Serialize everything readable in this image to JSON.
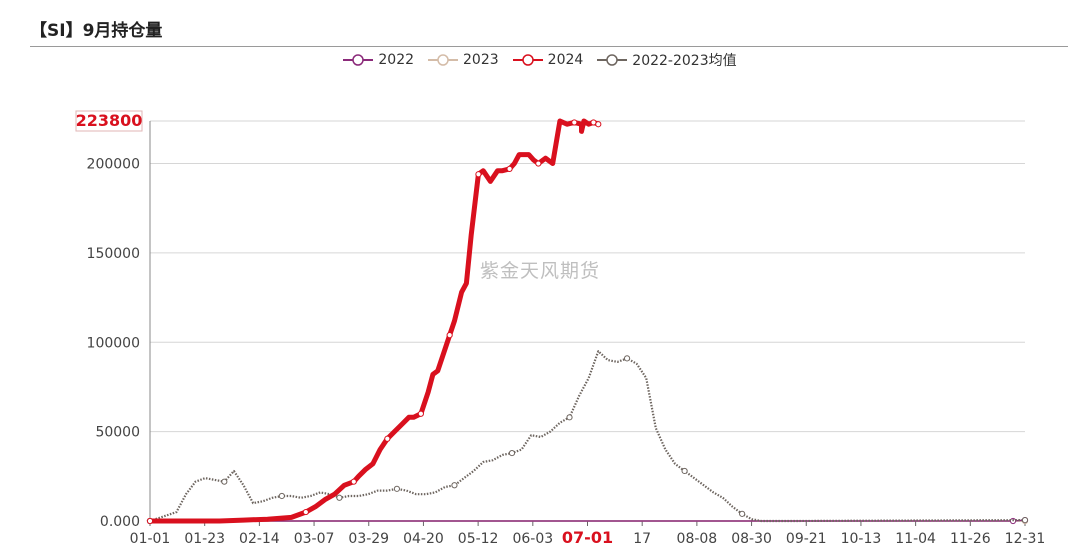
{
  "title": "【SI】9月持仓量",
  "watermark": "紫金天风期货",
  "colors": {
    "2022": "#8b2a7a",
    "2023": "#d4bca8",
    "2024": "#d9101e",
    "avg": "#6e6660"
  },
  "chart_data": {
    "type": "line",
    "title": "【SI】9月持仓量",
    "xlabel": "",
    "ylabel": "",
    "ylim": [
      0,
      223800
    ],
    "y_ticks": [
      "0.000",
      "50000",
      "100000",
      "150000",
      "200000"
    ],
    "x_ticks": [
      "01-01",
      "01-23",
      "02-14",
      "03-07",
      "03-29",
      "04-20",
      "05-12",
      "06-03",
      "07-01",
      "17",
      "08-08",
      "08-30",
      "09-21",
      "10-13",
      "11-04",
      "11-26",
      "12-31"
    ],
    "highlight_x_tick": "07-01",
    "y_max_label": "223800",
    "legend": [
      "2022",
      "2023",
      "2024",
      "2022-2023均值"
    ],
    "grid": true,
    "series": [
      {
        "name": "2024",
        "key": "2024",
        "x": [
          1,
          30,
          40,
          50,
          60,
          66,
          70,
          74,
          78,
          82,
          86,
          88,
          91,
          94,
          97,
          100,
          103,
          106,
          109,
          111,
          114,
          117,
          119,
          121,
          124,
          126,
          128,
          131,
          133,
          135,
          138,
          140,
          143,
          146,
          148,
          151,
          153,
          155,
          159,
          161,
          163,
          166,
          169,
          172,
          175,
          178,
          181,
          181,
          182,
          184,
          186,
          188
        ],
        "y": [
          0,
          0,
          500,
          1000,
          2000,
          5000,
          8000,
          12000,
          15000,
          20000,
          22000,
          25000,
          29000,
          32000,
          40000,
          46000,
          50000,
          54000,
          58000,
          58000,
          60000,
          72000,
          82000,
          84000,
          96000,
          104000,
          112000,
          128000,
          133000,
          160000,
          194000,
          196000,
          190000,
          196000,
          196000,
          197000,
          200000,
          205000,
          205000,
          202000,
          200000,
          203000,
          200000,
          223800,
          222000,
          223000,
          222000,
          218000,
          223800,
          222000,
          223000,
          222000
        ]
      },
      {
        "name": "2022-2023均值",
        "key": "avg",
        "x": [
          1,
          12,
          16,
          20,
          24,
          28,
          32,
          36,
          40,
          44,
          48,
          52,
          56,
          60,
          64,
          68,
          72,
          76,
          80,
          84,
          88,
          92,
          96,
          100,
          104,
          108,
          112,
          116,
          120,
          124,
          128,
          132,
          136,
          140,
          144,
          148,
          152,
          156,
          160,
          164,
          168,
          172,
          176,
          180,
          184,
          188,
          192,
          196,
          200,
          204,
          208,
          212,
          216,
          220,
          224,
          228,
          232,
          236,
          240,
          244,
          248,
          252,
          256,
          260,
          264,
          268,
          366
        ],
        "y": [
          0,
          5000,
          15000,
          22000,
          24000,
          23000,
          22000,
          28000,
          20000,
          10000,
          11000,
          13000,
          14000,
          14000,
          13000,
          14000,
          16000,
          15000,
          13000,
          14000,
          14000,
          15000,
          17000,
          17000,
          18000,
          17000,
          15000,
          15000,
          16000,
          19000,
          20000,
          24000,
          28000,
          33000,
          34000,
          37000,
          38000,
          40000,
          48000,
          47000,
          50000,
          55000,
          58000,
          70000,
          80000,
          95000,
          90000,
          89000,
          91000,
          88000,
          80000,
          52000,
          40000,
          32000,
          28000,
          24000,
          20000,
          16000,
          13000,
          8000,
          4000,
          1000,
          0,
          0,
          0,
          0,
          500
        ]
      },
      {
        "name": "2022",
        "key": "2022",
        "x": [
          1,
          361,
          366
        ],
        "y": [
          0,
          0,
          500
        ]
      },
      {
        "name": "2023",
        "key": "2023",
        "x": [
          1,
          366
        ],
        "y": [
          0,
          0
        ]
      }
    ]
  }
}
